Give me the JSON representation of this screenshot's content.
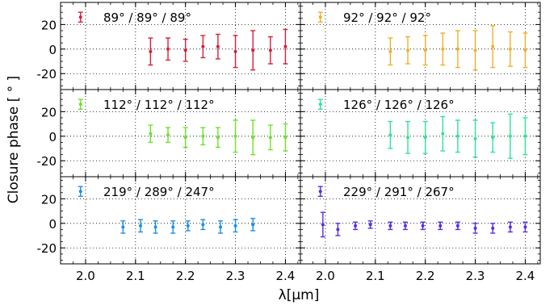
{
  "figure": {
    "ylabel": "Closure phase [ ° ]",
    "xlabel": "λ[μm]",
    "x_ticks": [
      "2.0",
      "2.1",
      "2.2",
      "2.3",
      "2.4"
    ],
    "y_ticks": [
      "20",
      "0",
      "-20"
    ]
  },
  "chart_data": [
    {
      "type": "scatter",
      "label": "89° / 89° / 89°",
      "color": "#d6203a",
      "xlim": [
        1.95,
        2.43
      ],
      "ylim": [
        -33,
        38
      ],
      "grid": true,
      "x": [
        1.99,
        2.13,
        2.165,
        2.2,
        2.235,
        2.265,
        2.3,
        2.335,
        2.37,
        2.4
      ],
      "y": [
        26,
        -2,
        0,
        -1,
        2,
        2,
        -2,
        -1,
        -1,
        2
      ],
      "err": [
        4,
        11,
        9,
        9,
        9,
        10,
        13,
        16,
        11,
        14
      ]
    },
    {
      "type": "scatter",
      "label": "92° / 92° / 92°",
      "color": "#f0b02a",
      "xlim": [
        1.95,
        2.43
      ],
      "ylim": [
        -33,
        38
      ],
      "grid": true,
      "x": [
        1.99,
        2.13,
        2.165,
        2.2,
        2.235,
        2.265,
        2.3,
        2.335,
        2.37,
        2.4
      ],
      "y": [
        26,
        -2,
        -1,
        -1,
        0,
        0,
        -1,
        2,
        0,
        -1
      ],
      "err": [
        4,
        11,
        11,
        12,
        13,
        15,
        16,
        17,
        14,
        14
      ]
    },
    {
      "type": "scatter",
      "label": "112° / 112° / 112°",
      "color": "#6ee02a",
      "xlim": [
        1.95,
        2.43
      ],
      "ylim": [
        -33,
        38
      ],
      "grid": true,
      "x": [
        1.99,
        2.13,
        2.165,
        2.2,
        2.235,
        2.265,
        2.3,
        2.335,
        2.37,
        2.4
      ],
      "y": [
        26,
        2,
        1,
        -1,
        0,
        -1,
        0,
        -1,
        -1,
        -1
      ],
      "err": [
        4,
        7,
        6,
        8,
        7,
        8,
        13,
        14,
        10,
        11
      ]
    },
    {
      "type": "scatter",
      "label": "126° / 126° / 126°",
      "color": "#2ee39a",
      "xlim": [
        1.95,
        2.43
      ],
      "ylim": [
        -33,
        38
      ],
      "grid": true,
      "x": [
        1.99,
        2.13,
        2.165,
        2.2,
        2.235,
        2.265,
        2.3,
        2.335,
        2.37,
        2.4
      ],
      "y": [
        26,
        1,
        -1,
        -1,
        2,
        0,
        -2,
        -1,
        0,
        0
      ],
      "err": [
        4,
        11,
        13,
        13,
        14,
        13,
        15,
        12,
        18,
        15
      ]
    },
    {
      "type": "scatter",
      "label": "219° / 289° / 247°",
      "color": "#1e8fe6",
      "xlim": [
        1.95,
        2.43
      ],
      "ylim": [
        -33,
        38
      ],
      "grid": true,
      "x": [
        1.99,
        2.075,
        2.11,
        2.14,
        2.175,
        2.205,
        2.235,
        2.27,
        2.3,
        2.335
      ],
      "y": [
        26,
        -3,
        -2,
        -3,
        -3,
        -2,
        -1,
        -3,
        -2,
        -1
      ],
      "err": [
        4,
        5,
        5,
        5,
        5,
        4,
        4,
        5,
        5,
        5
      ]
    },
    {
      "type": "scatter",
      "label": "229° / 291° / 267°",
      "color": "#5a2de0",
      "xlim": [
        1.95,
        2.43
      ],
      "ylim": [
        -33,
        38
      ],
      "grid": true,
      "x": [
        1.99,
        1.995,
        2.025,
        2.06,
        2.09,
        2.13,
        2.16,
        2.195,
        2.23,
        2.265,
        2.3,
        2.335,
        2.37,
        2.4
      ],
      "y": [
        26,
        -1,
        -5,
        -2,
        -1,
        -2,
        -2,
        -2,
        -2,
        -2,
        -4,
        -4,
        -3,
        -3
      ],
      "err": [
        4,
        10,
        5,
        3,
        3,
        3,
        3,
        3,
        3,
        3,
        4,
        4,
        4,
        4
      ]
    }
  ]
}
